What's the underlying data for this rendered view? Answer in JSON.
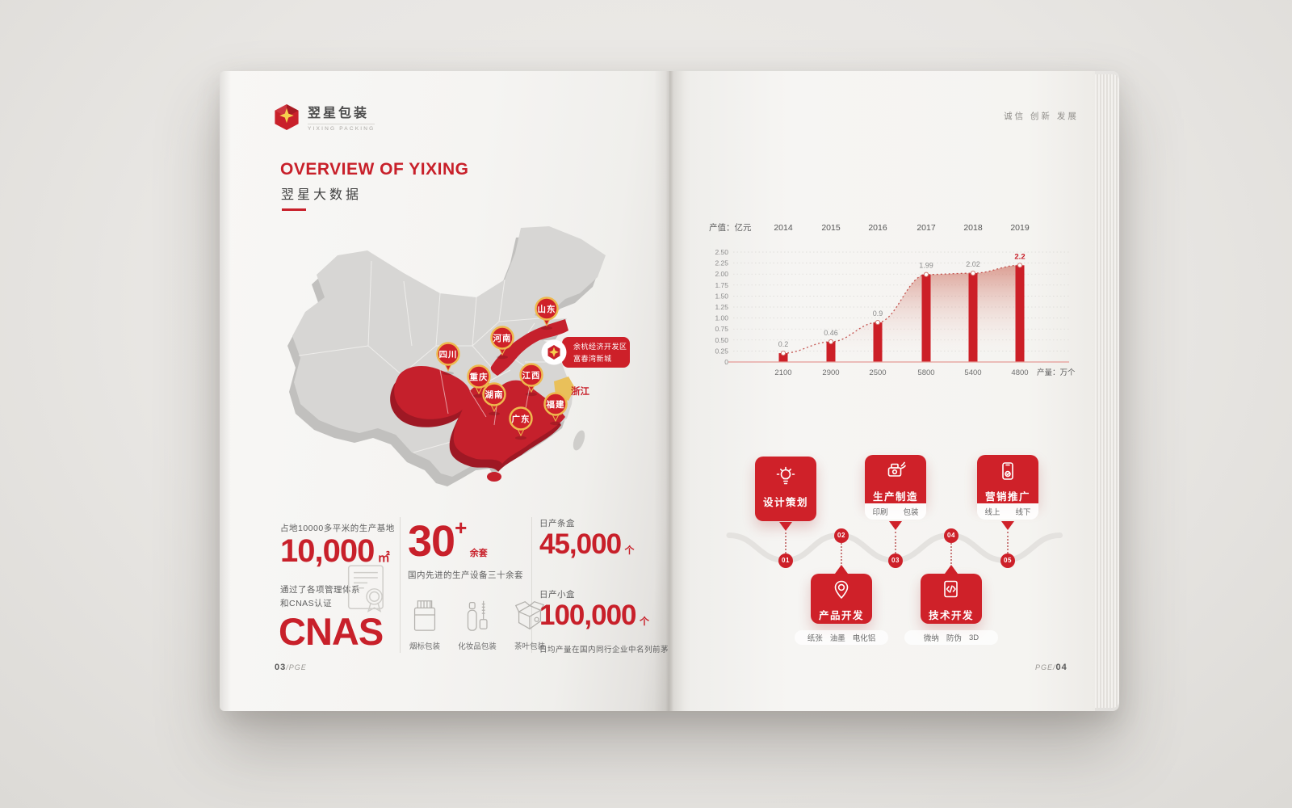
{
  "colors": {
    "accent_red": "#c8202a",
    "bar_red": "#cc1f27",
    "gold": "#f0b83e",
    "page_bg": "#e8e6e3"
  },
  "left_page": {
    "logo": {
      "brand_cn": "翌星包装",
      "brand_en": "YIXING PACKING"
    },
    "title_en": "OVERVIEW OF YIXING",
    "title_cn": "翌星大数据",
    "map": {
      "pins": [
        "四川",
        "重庆",
        "河南",
        "山东",
        "湖南",
        "江西",
        "福建",
        "广东"
      ],
      "province_label": "浙江",
      "badge_line1": "余杭经济开发区",
      "badge_line2": "富春湾新城"
    },
    "stats": {
      "area_caption": "占地10000多平米的生产基地",
      "area_value": "10,000",
      "area_unit": "㎡",
      "equip_value": "30",
      "equip_plus": "+",
      "equip_unit": "余套",
      "equip_caption": "国内先进的生产设备三十余套",
      "packaging_types": [
        "烟标包装",
        "化妆品包装",
        "茶叶包装"
      ],
      "cert_line1": "通过了各项管理体系",
      "cert_line2": "和CNAS认证",
      "cert_value": "CNAS",
      "carton_label": "日产条盒",
      "carton_value": "45,000",
      "carton_unit": "个",
      "box_label": "日产小盒",
      "box_value": "100,000",
      "box_unit": "个",
      "rank_caption": "日均产量在国内同行企业中名列前茅"
    },
    "footer_num": "03",
    "footer_suffix": "/PGE"
  },
  "right_page": {
    "header": "诚信 创新 发展",
    "flow": {
      "steps": [
        {
          "num": "01",
          "label": "设计策划",
          "icon": "lightbulb-icon",
          "subs": []
        },
        {
          "num": "02",
          "label": "产品开发",
          "icon": "map-pin-icon",
          "subs": [
            "纸张",
            "油墨",
            "电化铝"
          ]
        },
        {
          "num": "03",
          "label": "生产制造",
          "icon": "machine-icon",
          "subs": [
            "印刷",
            "包装"
          ]
        },
        {
          "num": "04",
          "label": "技术开发",
          "icon": "code-doc-icon",
          "subs": [
            "微纳",
            "防伪",
            "3D"
          ]
        },
        {
          "num": "05",
          "label": "营销推广",
          "icon": "phone-icon",
          "subs": [
            "线上",
            "线下"
          ]
        }
      ]
    },
    "footer_prefix": "PGE/",
    "footer_num": "04"
  },
  "chart_data": {
    "type": "bar",
    "title": "产值：亿元",
    "categories": [
      "2014",
      "2015",
      "2016",
      "2017",
      "2018",
      "2019"
    ],
    "series": [
      {
        "name": "产值（亿元）",
        "values": [
          0.2,
          0.46,
          0.9,
          1.99,
          2.02,
          2.2
        ]
      },
      {
        "name": "产量（万个）",
        "values": [
          2100,
          2900,
          2500,
          5800,
          5400,
          4800
        ]
      }
    ],
    "value_labels": [
      "0.2",
      "0.46",
      "0.9",
      "1.99",
      "2.02",
      "2.2"
    ],
    "bottom_labels": [
      "2100",
      "2900",
      "2500",
      "5800",
      "5400",
      "4800"
    ],
    "ytick_labels": [
      "0",
      "0.25",
      "0.50",
      "0.75",
      "1.00",
      "1.25",
      "1.50",
      "1.75",
      "2.00",
      "2.25",
      "2.50"
    ],
    "ylim": [
      0,
      2.5
    ],
    "unit_label_left": "产值：亿元",
    "unit_label_bottom": "产量：万个",
    "grid": true,
    "legend": "none",
    "annotation": "dotted trend line with gradient area fill under curve; 2019 value highlighted in red"
  }
}
